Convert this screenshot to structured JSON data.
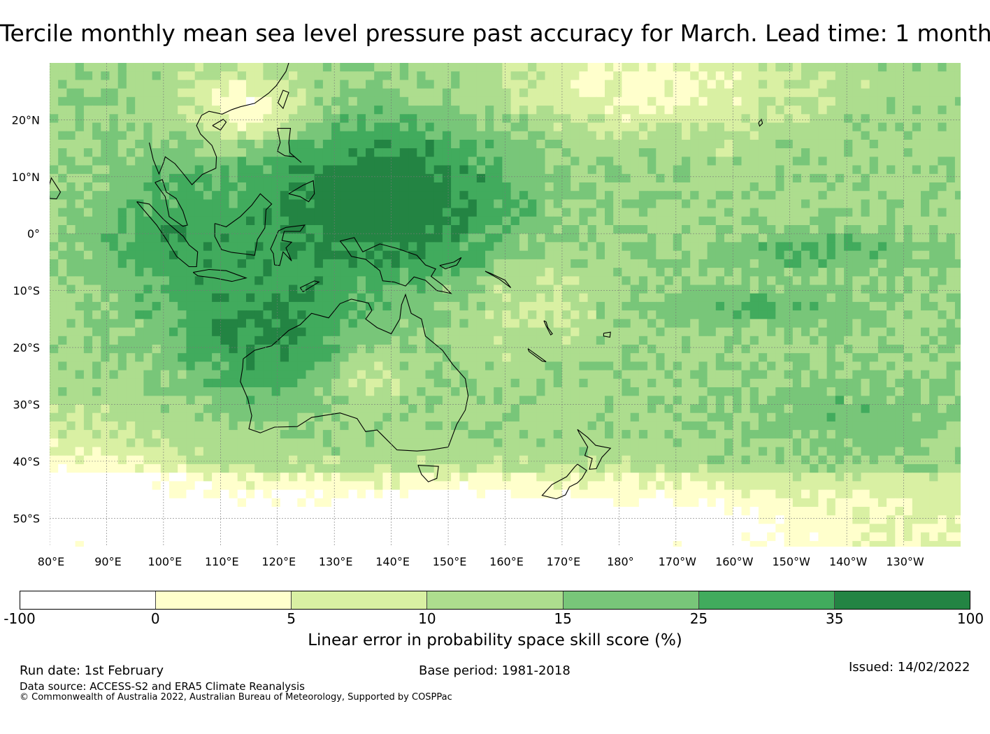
{
  "title": "Tercile monthly mean sea level pressure past accuracy for March. Lead time: 1 month",
  "map": {
    "type": "heatmap",
    "region": "Western and central Pacific, Maritime Continent and Australia",
    "lon_range_deg": [
      80,
      240
    ],
    "lat_range_deg": [
      -55,
      30
    ],
    "lat_ticks": [
      {
        "value": 20,
        "label": "20°N"
      },
      {
        "value": 10,
        "label": "10°N"
      },
      {
        "value": 0,
        "label": "0°"
      },
      {
        "value": -10,
        "label": "10°S"
      },
      {
        "value": -20,
        "label": "20°S"
      },
      {
        "value": -30,
        "label": "30°S"
      },
      {
        "value": -40,
        "label": "40°S"
      },
      {
        "value": -50,
        "label": "50°S"
      }
    ],
    "lon_ticks": [
      {
        "value": 80,
        "label": "80°E"
      },
      {
        "value": 90,
        "label": "90°E"
      },
      {
        "value": 100,
        "label": "100°E"
      },
      {
        "value": 110,
        "label": "110°E"
      },
      {
        "value": 120,
        "label": "120°E"
      },
      {
        "value": 130,
        "label": "130°E"
      },
      {
        "value": 140,
        "label": "140°E"
      },
      {
        "value": 150,
        "label": "150°E"
      },
      {
        "value": 160,
        "label": "160°E"
      },
      {
        "value": 170,
        "label": "170°E"
      },
      {
        "value": 180,
        "label": "180°"
      },
      {
        "value": 190,
        "label": "170°W"
      },
      {
        "value": 200,
        "label": "160°W"
      },
      {
        "value": 210,
        "label": "150°W"
      },
      {
        "value": 220,
        "label": "140°W"
      },
      {
        "value": 230,
        "label": "130°W"
      }
    ],
    "gridlines": true
  },
  "colorbar": {
    "boundaries": [
      "-100",
      "0",
      "5",
      "10",
      "15",
      "25",
      "35",
      "100"
    ],
    "colors": [
      "#ffffff",
      "#ffffcc",
      "#d9f0a3",
      "#addd8e",
      "#78c679",
      "#41ab5d",
      "#238443"
    ],
    "label": "Linear error in probability space skill score (%)"
  },
  "footer": {
    "run_date": "Run date: 1st February",
    "base_period": "Base period: 1981-2018",
    "issued": "Issued: 14/02/2022",
    "data_source": "Data source: ACCESS-S2 and ERA5 Climate Reanalysis",
    "copyright": "© Commonwealth of Australia 2022, Australian Bureau of Meteorology, Supported by COSPPac"
  }
}
